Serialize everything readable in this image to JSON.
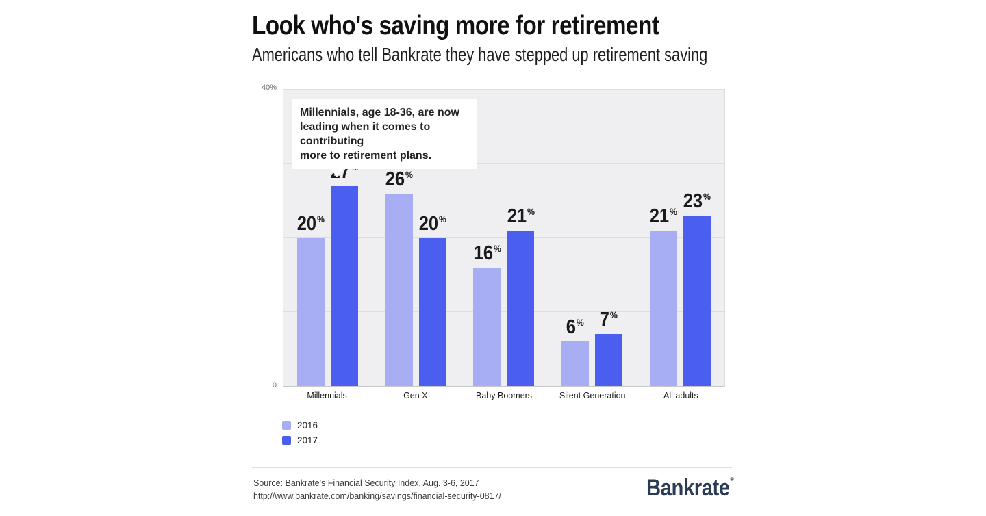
{
  "header": {
    "title": "Look who's saving more for retirement",
    "subtitle": "Americans who tell Bankrate they have stepped up retirement saving"
  },
  "annotation": {
    "text": "Millennials, age 18-36, are now\nleading when it comes to contributing\nmore to retirement plans."
  },
  "chart_data": {
    "type": "bar",
    "categories": [
      "Millennials",
      "Gen X",
      "Baby Boomers",
      "Silent Generation",
      "All adults"
    ],
    "series": [
      {
        "name": "2016",
        "color": "#a7aef4",
        "values": [
          20,
          26,
          16,
          6,
          21
        ]
      },
      {
        "name": "2017",
        "color": "#4a5ef0",
        "values": [
          27,
          20,
          21,
          7,
          23
        ]
      }
    ],
    "value_suffix": "%",
    "ylim": [
      0,
      40
    ],
    "gridlines": [
      10,
      20,
      30
    ],
    "y_axis_top_label": "40%",
    "y_axis_bottom_label": "0",
    "grid": true,
    "legend_position": "bottom-left",
    "plot_background": "#efeff1"
  },
  "footer": {
    "source_line1": "Source: Bankrate's Financial Security Index, Aug. 3-6, 2017",
    "source_line2": "http://www.bankrate.com/banking/savings/financial-security-0817/",
    "logo_text": "Bankrate",
    "logo_mark": "®",
    "logo_color": "#2b3a55"
  }
}
